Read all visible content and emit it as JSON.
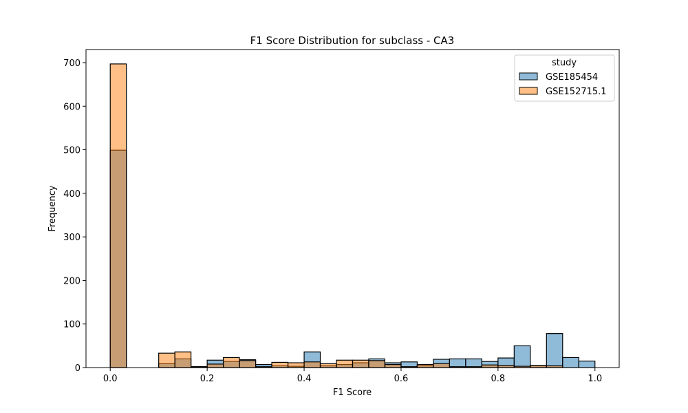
{
  "chart_data": {
    "type": "bar",
    "title": "F1 Score Distribution for subclass - CA3",
    "xlabel": "F1 Score",
    "ylabel": "Frequency",
    "xlim": [
      -0.05,
      1.05
    ],
    "ylim": [
      0,
      730
    ],
    "xticks": [
      0.0,
      0.2,
      0.4,
      0.6,
      0.8,
      1.0
    ],
    "xtick_labels": [
      "0.0",
      "0.2",
      "0.4",
      "0.6",
      "0.8",
      "1.0"
    ],
    "yticks": [
      0,
      100,
      200,
      300,
      400,
      500,
      600,
      700
    ],
    "ytick_labels": [
      "0",
      "100",
      "200",
      "300",
      "400",
      "500",
      "600",
      "700"
    ],
    "grid": false,
    "legend": {
      "title": "study",
      "placement": "top-right"
    },
    "bin_width": 0.0333,
    "bin_starts": [
      0.0,
      0.0333,
      0.0667,
      0.1,
      0.1333,
      0.1667,
      0.2,
      0.2333,
      0.2667,
      0.3,
      0.3333,
      0.3667,
      0.4,
      0.4333,
      0.4667,
      0.5,
      0.5333,
      0.5667,
      0.6,
      0.6333,
      0.6667,
      0.7,
      0.7333,
      0.7667,
      0.8,
      0.8333,
      0.8667,
      0.9,
      0.9333,
      0.9667
    ],
    "series": [
      {
        "name": "GSE185454",
        "color": "#1f77b4",
        "values": [
          499,
          0,
          0,
          9,
          20,
          2,
          17,
          14,
          18,
          7,
          4,
          3,
          36,
          4,
          7,
          11,
          20,
          11,
          13,
          4,
          19,
          20,
          20,
          14,
          22,
          50,
          5,
          78,
          23,
          15
        ]
      },
      {
        "name": "GSE152715.1",
        "color": "#ff7f0e",
        "values": [
          697,
          0,
          0,
          33,
          36,
          2,
          8,
          23,
          16,
          2,
          12,
          11,
          13,
          9,
          17,
          17,
          16,
          7,
          2,
          7,
          9,
          2,
          2,
          6,
          5,
          3,
          5,
          4,
          0,
          0
        ]
      }
    ]
  }
}
